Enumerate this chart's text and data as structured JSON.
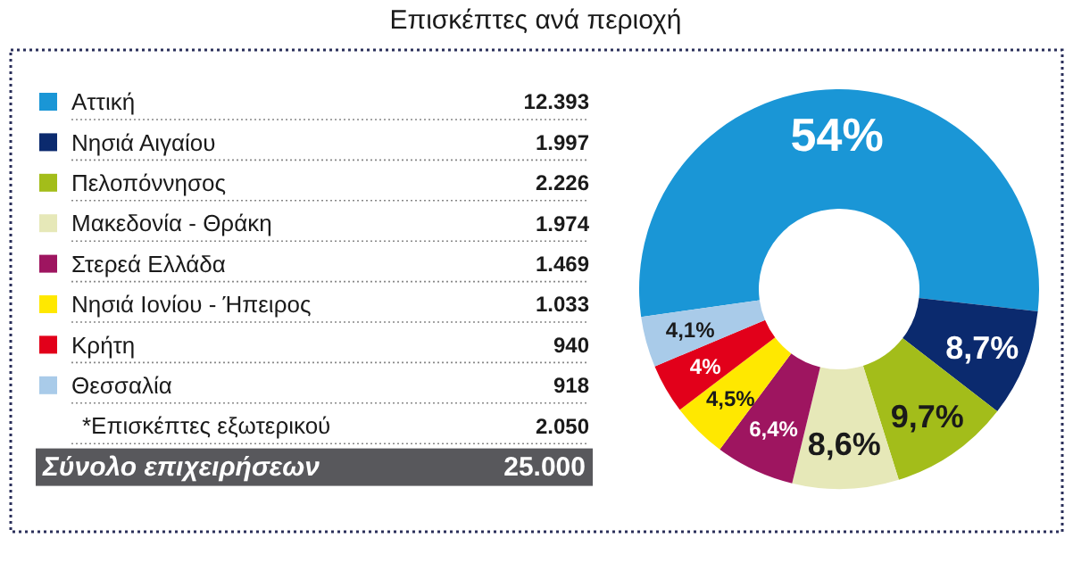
{
  "chart_data": {
    "type": "donut",
    "title": "Επισκέπτες ανά περιοχή",
    "categories": [
      "Αττική",
      "Νησιά Αιγαίου",
      "Πελοπόννησος",
      "Μακεδονία - Θράκη",
      "Στερεά Ελλάδα",
      "Νησιά Ιονίου - Ήπειρος",
      "Κρήτη",
      "Θεσσαλία"
    ],
    "values": [
      54,
      8.7,
      9.7,
      8.6,
      6.4,
      4.5,
      4,
      4.1
    ],
    "colors": [
      "#1a96d6",
      "#0b2a6e",
      "#a3bd1a",
      "#e6e8b8",
      "#9e1560",
      "#ffe800",
      "#e2001a",
      "#a9cbe9"
    ],
    "value_labels": [
      "54%",
      "8,7%",
      "9,7%",
      "8,6%",
      "6,4%",
      "4,5%",
      "4%",
      "4,1%"
    ],
    "legend": "left",
    "annotations": [
      "12.393",
      "1.997",
      "2.226",
      "1.974",
      "1.469",
      "1.033",
      "940",
      "918",
      "*Επισκέπτες εξωτερικού",
      "2.050",
      "Σύνολο επιχειρήσεων",
      "25.000"
    ]
  }
}
